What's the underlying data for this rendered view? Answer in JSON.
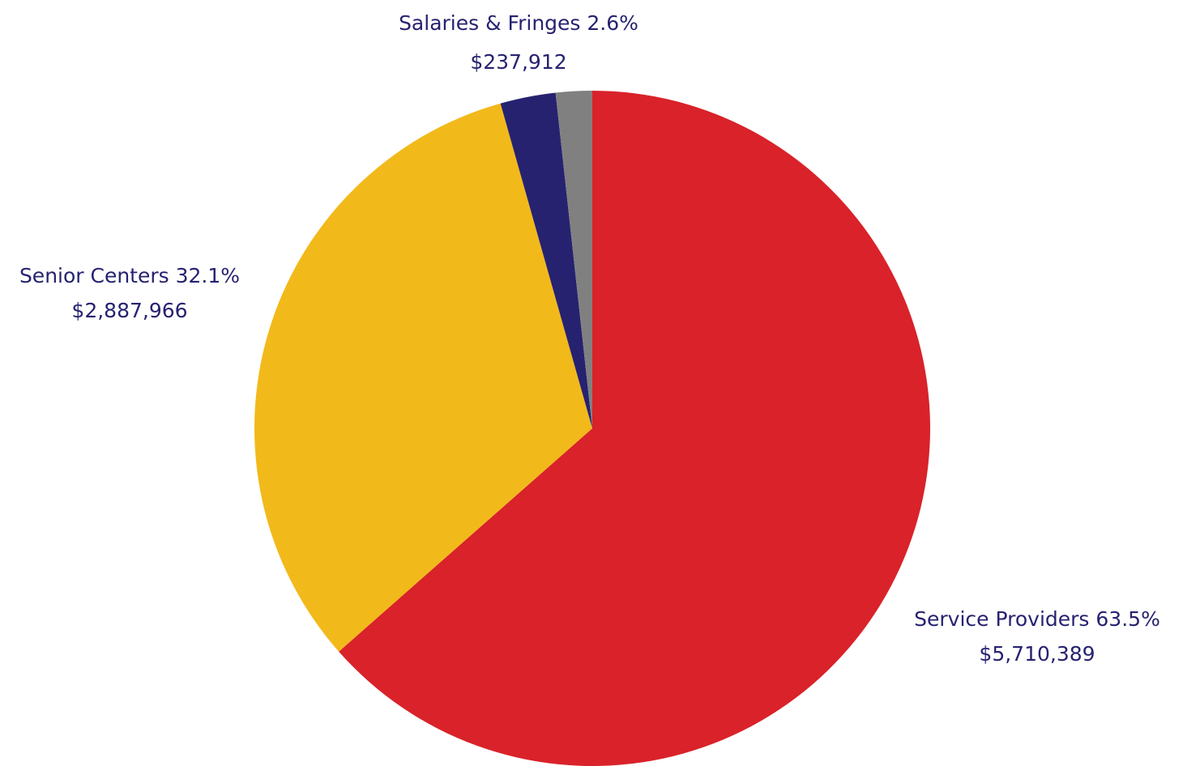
{
  "chart_data": {
    "type": "pie",
    "categories": [
      "Service Providers",
      "Senior Centers",
      "Salaries & Fringes",
      null
    ],
    "values": [
      5710389,
      2887966,
      237912,
      156000
    ],
    "value_labels": [
      "$5,710,389",
      "$2,887,966",
      "$237,912",
      null
    ],
    "percents": [
      63.5,
      32.1,
      2.6,
      null
    ],
    "percent_labels": [
      "63.5%",
      "32.1%",
      "2.6%",
      null
    ],
    "colors": [
      "#d92229",
      "#f2b91b",
      "#262270",
      "#808080"
    ],
    "start_angle": 0,
    "direction": "clockwise"
  }
}
